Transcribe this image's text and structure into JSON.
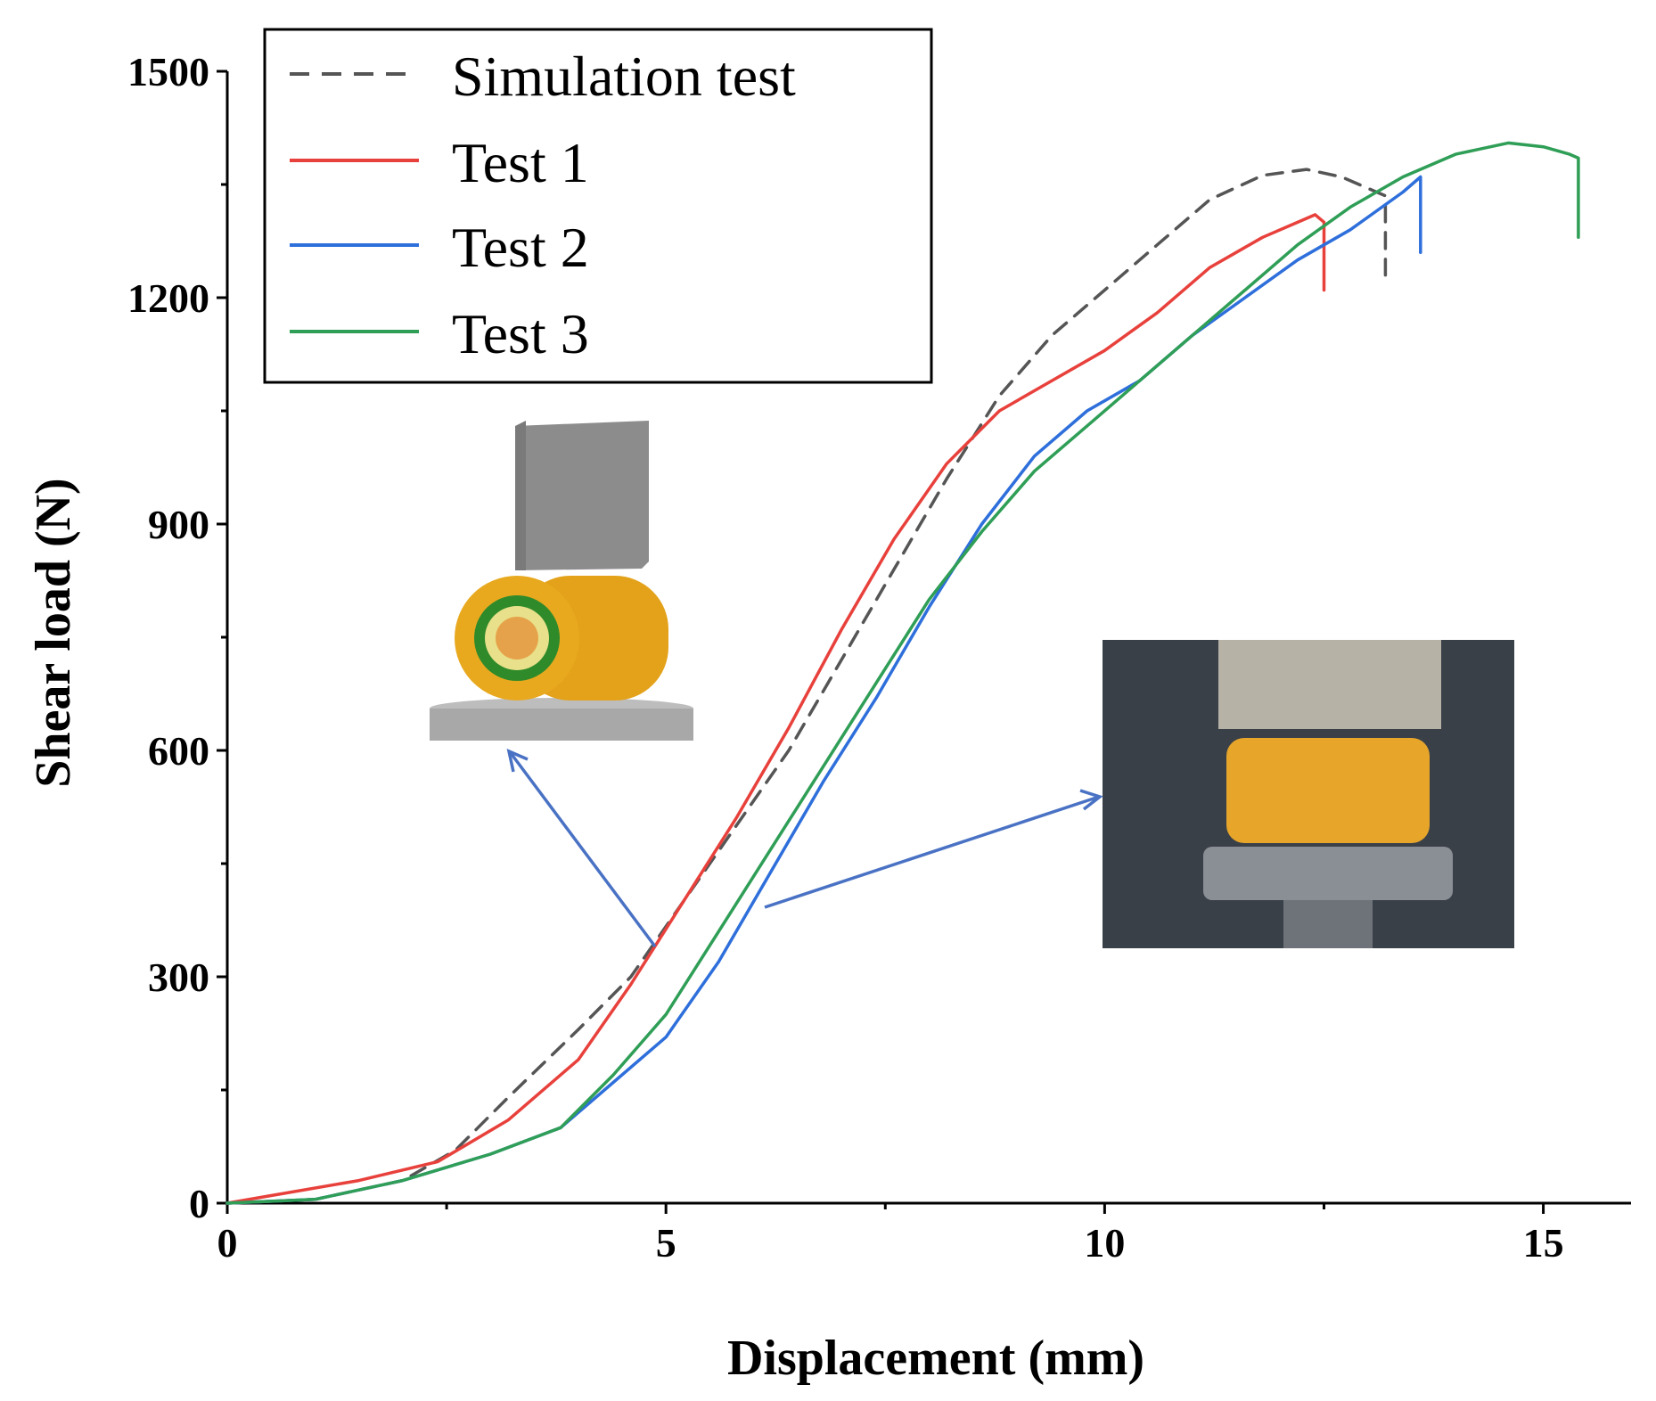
{
  "chart_data": {
    "type": "line",
    "xlabel": "Displacement (mm)",
    "ylabel": "Shear load (N)",
    "xlim": [
      0,
      16
    ],
    "ylim": [
      0,
      1500
    ],
    "xticks": [
      0,
      5,
      10,
      15
    ],
    "yticks": [
      0,
      300,
      600,
      900,
      1200,
      1500
    ],
    "grid": false,
    "legend_position": "top-left",
    "series": [
      {
        "name": "Simulation test",
        "color": "#555555",
        "dashed": true,
        "points": [
          [
            0,
            0
          ],
          [
            1.0,
            5
          ],
          [
            2.0,
            30
          ],
          [
            2.6,
            70
          ],
          [
            3.2,
            140
          ],
          [
            4.0,
            230
          ],
          [
            4.6,
            300
          ],
          [
            5.2,
            400
          ],
          [
            5.8,
            500
          ],
          [
            6.4,
            600
          ],
          [
            7.0,
            720
          ],
          [
            7.6,
            840
          ],
          [
            8.2,
            960
          ],
          [
            8.8,
            1070
          ],
          [
            9.4,
            1150
          ],
          [
            10.0,
            1210
          ],
          [
            10.6,
            1270
          ],
          [
            11.2,
            1330
          ],
          [
            11.8,
            1362
          ],
          [
            12.3,
            1370
          ],
          [
            12.7,
            1360
          ],
          [
            13.1,
            1340
          ],
          [
            13.2,
            1335
          ],
          [
            13.2,
            1230
          ]
        ]
      },
      {
        "name": "Test 1",
        "color": "#e8413c",
        "dashed": false,
        "points": [
          [
            0,
            0
          ],
          [
            0.5,
            10
          ],
          [
            1.5,
            30
          ],
          [
            2.4,
            55
          ],
          [
            3.2,
            110
          ],
          [
            4.0,
            190
          ],
          [
            4.6,
            290
          ],
          [
            5.2,
            400
          ],
          [
            5.8,
            510
          ],
          [
            6.4,
            630
          ],
          [
            7.0,
            760
          ],
          [
            7.6,
            880
          ],
          [
            8.2,
            980
          ],
          [
            8.8,
            1050
          ],
          [
            9.4,
            1090
          ],
          [
            10.0,
            1130
          ],
          [
            10.6,
            1180
          ],
          [
            11.2,
            1240
          ],
          [
            11.8,
            1280
          ],
          [
            12.4,
            1310
          ],
          [
            12.5,
            1300
          ],
          [
            12.5,
            1210
          ]
        ]
      },
      {
        "name": "Test 2",
        "color": "#2e6fdb",
        "dashed": false,
        "points": [
          [
            0,
            0
          ],
          [
            1.0,
            5
          ],
          [
            2.0,
            30
          ],
          [
            3.0,
            65
          ],
          [
            3.8,
            100
          ],
          [
            4.4,
            160
          ],
          [
            5.0,
            220
          ],
          [
            5.6,
            320
          ],
          [
            6.2,
            440
          ],
          [
            6.8,
            560
          ],
          [
            7.4,
            670
          ],
          [
            8.0,
            790
          ],
          [
            8.6,
            900
          ],
          [
            9.2,
            990
          ],
          [
            9.8,
            1050
          ],
          [
            10.4,
            1090
          ],
          [
            11.0,
            1150
          ],
          [
            11.6,
            1200
          ],
          [
            12.2,
            1250
          ],
          [
            12.8,
            1290
          ],
          [
            13.4,
            1340
          ],
          [
            13.6,
            1360
          ],
          [
            13.6,
            1260
          ]
        ]
      },
      {
        "name": "Test 3",
        "color": "#2f9e56",
        "dashed": false,
        "points": [
          [
            0,
            0
          ],
          [
            1.0,
            5
          ],
          [
            2.0,
            30
          ],
          [
            3.0,
            65
          ],
          [
            3.8,
            100
          ],
          [
            4.4,
            170
          ],
          [
            5.0,
            250
          ],
          [
            5.6,
            360
          ],
          [
            6.2,
            470
          ],
          [
            6.8,
            580
          ],
          [
            7.4,
            690
          ],
          [
            8.0,
            800
          ],
          [
            8.6,
            890
          ],
          [
            9.2,
            970
          ],
          [
            9.8,
            1030
          ],
          [
            10.4,
            1090
          ],
          [
            11.0,
            1150
          ],
          [
            11.6,
            1210
          ],
          [
            12.2,
            1270
          ],
          [
            12.8,
            1320
          ],
          [
            13.4,
            1360
          ],
          [
            14.0,
            1390
          ],
          [
            14.6,
            1405
          ],
          [
            15.0,
            1400
          ],
          [
            15.3,
            1390
          ],
          [
            15.4,
            1385
          ],
          [
            15.4,
            1280
          ]
        ]
      }
    ]
  }
}
